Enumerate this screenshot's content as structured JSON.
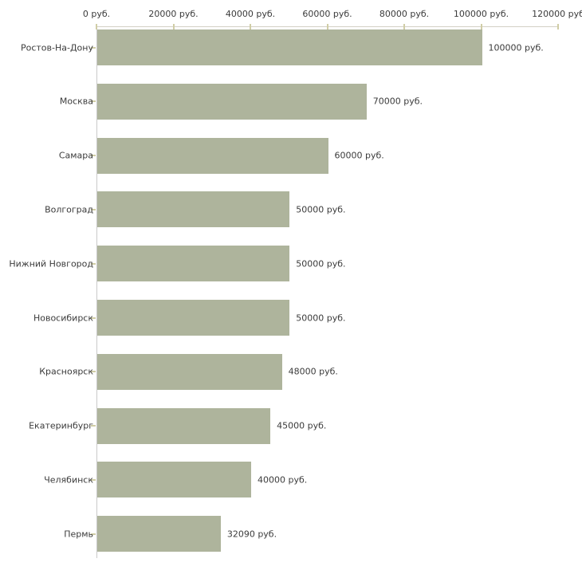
{
  "chart_data": {
    "type": "bar",
    "orientation": "horizontal",
    "title": "",
    "xlabel": "",
    "ylabel": "",
    "unit": "руб.",
    "xlim": [
      0,
      120000
    ],
    "grid": false,
    "legend": false,
    "categories": [
      "Ростов-На-Дону",
      "Москва",
      "Самара",
      "Волгоград",
      "Нижний Новгород",
      "Новосибирск",
      "Красноярск",
      "Екатеринбург",
      "Челябинск",
      "Пермь"
    ],
    "values": [
      100000,
      70000,
      60000,
      50000,
      50000,
      50000,
      48000,
      45000,
      40000,
      32090
    ],
    "value_labels": [
      "100000 руб.",
      "70000 руб.",
      "60000 руб.",
      "50000 руб.",
      "50000 руб.",
      "50000 руб.",
      "48000 руб.",
      "45000 руб.",
      "40000 руб.",
      "32090 руб."
    ],
    "x_ticks": [
      {
        "value": 0,
        "label": "0 руб."
      },
      {
        "value": 20000,
        "label": "20000 руб."
      },
      {
        "value": 40000,
        "label": "40000 руб."
      },
      {
        "value": 60000,
        "label": "60000 руб."
      },
      {
        "value": 80000,
        "label": "80000 руб."
      },
      {
        "value": 100000,
        "label": "100000 руб."
      },
      {
        "value": 120000,
        "label": "120000 руб"
      }
    ],
    "colors": {
      "bar": "#aeb49c",
      "axis_x_line": "#d3d0c5",
      "axis_y_line": "#c9c9c9",
      "tick": "#d0cda6",
      "text": "#3b3b3b",
      "background": "#ffffff"
    }
  }
}
